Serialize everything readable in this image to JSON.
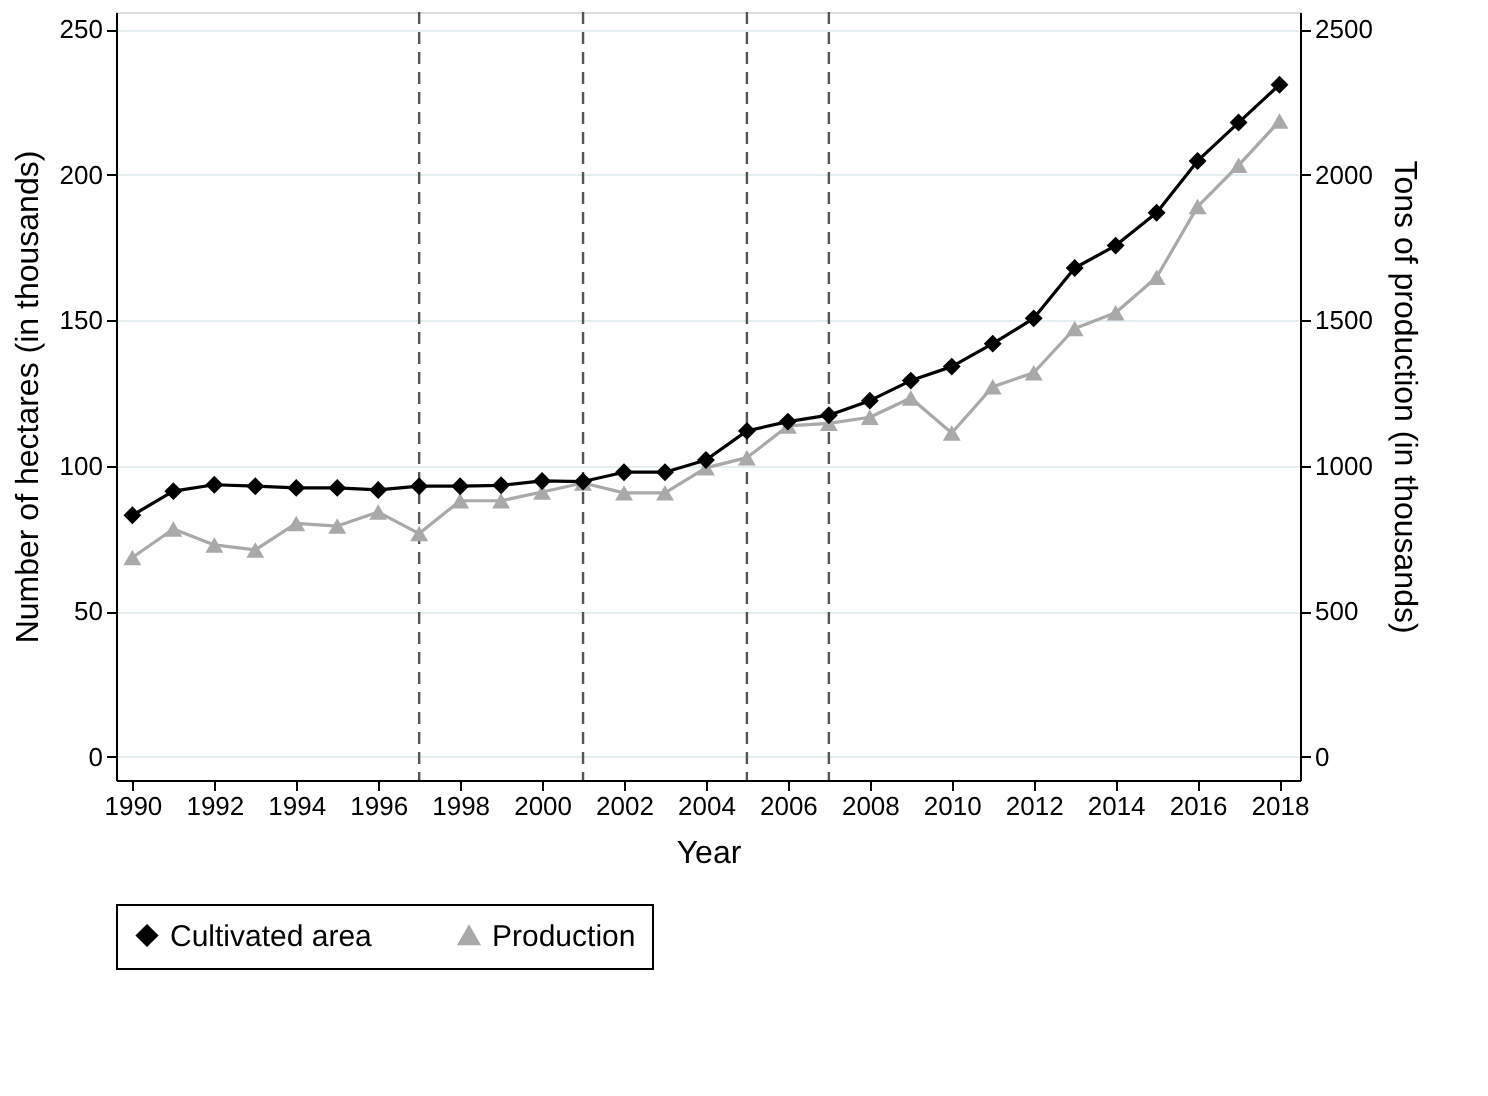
{
  "chart_data": {
    "type": "line",
    "xlabel": "Year",
    "ylabel": "Number of hectares (in thousands)",
    "y2label": "Tons of production (in thousands)",
    "x": [
      1990,
      1991,
      1992,
      1993,
      1994,
      1995,
      1996,
      1997,
      1998,
      1999,
      2000,
      2001,
      2002,
      2003,
      2004,
      2005,
      2006,
      2007,
      2008,
      2009,
      2010,
      2011,
      2012,
      2013,
      2014,
      2015,
      2016,
      2017,
      2018
    ],
    "series": [
      {
        "name": "Cultivated area",
        "color": "#000000",
        "marker": "diamond",
        "axis": "y",
        "values": [
          83,
          91.3,
          93.5,
          93,
          92.4,
          92.4,
          91.7,
          93,
          93,
          93.3,
          94.8,
          94.6,
          97.8,
          97.8,
          102,
          112,
          115.2,
          117.4,
          122.4,
          129.3,
          134.1,
          142,
          150.7,
          168,
          175.7,
          187,
          204.8,
          218,
          231
        ]
      },
      {
        "name": "Production",
        "color": "#a9a9a9",
        "marker": "triangle",
        "axis": "y2",
        "values": [
          685,
          783,
          728,
          711,
          802,
          793,
          841,
          767,
          880,
          880,
          910,
          941,
          907,
          907,
          993,
          1028,
          1137,
          1146,
          1167,
          1233,
          1113,
          1272,
          1320,
          1472,
          1526,
          1648,
          1891,
          2033,
          2185
        ]
      }
    ],
    "xlim": [
      1989.6,
      2018.5
    ],
    "xticks": [
      1990,
      1992,
      1994,
      1996,
      1998,
      2000,
      2002,
      2004,
      2006,
      2008,
      2010,
      2012,
      2014,
      2016,
      2018
    ],
    "ylim": [
      -8,
      256
    ],
    "yticks": [
      0,
      50,
      100,
      150,
      200,
      250
    ],
    "y2lim": [
      -80,
      2560
    ],
    "y2ticks": [
      0,
      500,
      1000,
      1500,
      2000,
      2500
    ],
    "ref_lines": [
      {
        "axis": "x",
        "value": 1997,
        "color": "#555555",
        "line_style": "dashed"
      },
      {
        "axis": "x",
        "value": 2001,
        "color": "#555555",
        "line_style": "dashed"
      },
      {
        "axis": "x",
        "value": 2005,
        "color": "#555555",
        "line_style": "dashed"
      },
      {
        "axis": "x",
        "value": 2007,
        "color": "#555555",
        "line_style": "dashed"
      }
    ],
    "grid": "y",
    "legend": "bottom",
    "line_style": "solid"
  }
}
